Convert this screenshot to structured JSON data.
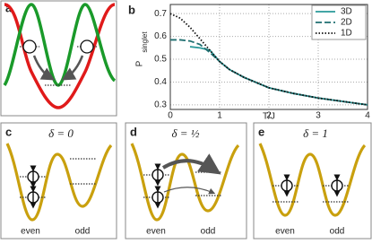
{
  "chart_data": {
    "type": "line",
    "panel_label": "b",
    "xlabel": "T/J",
    "ylabel": "P",
    "ylabel_sub": "singlet",
    "x": [
      0,
      0.2,
      0.4,
      0.6,
      0.8,
      1.0,
      1.2,
      1.5,
      2,
      2.5,
      3,
      3.5,
      4
    ],
    "series": [
      {
        "name": "3D",
        "color": "#2a9a9a",
        "dash": "solid",
        "values": [
          null,
          null,
          0.555,
          0.55,
          0.54,
          0.49,
          0.455,
          0.42,
          0.375,
          0.35,
          0.33,
          0.315,
          0.3
        ]
      },
      {
        "name": "2D",
        "color": "#1f6f70",
        "dash": "dashed",
        "values": [
          0.585,
          0.585,
          0.58,
          0.565,
          0.53,
          0.49,
          0.455,
          0.42,
          0.375,
          0.35,
          0.33,
          0.315,
          0.3
        ]
      },
      {
        "name": "1D",
        "color": "#111111",
        "dash": "dotted",
        "values": [
          0.7,
          0.68,
          0.64,
          0.59,
          0.54,
          0.49,
          0.455,
          0.42,
          0.375,
          0.35,
          0.33,
          0.315,
          0.3
        ]
      }
    ],
    "xlim": [
      0,
      4
    ],
    "xticks": [
      0,
      1,
      2,
      3,
      4
    ],
    "ylim": [
      0.28,
      0.74
    ],
    "yticks": [
      0.3,
      0.4,
      0.5,
      0.6,
      0.7
    ],
    "grid": true,
    "legend": "top-right"
  },
  "panels": {
    "a": {
      "label": "a"
    },
    "c": {
      "label": "c",
      "delta": "δ = 0",
      "left": "even",
      "right": "odd"
    },
    "d": {
      "label": "d",
      "delta": "δ = ½",
      "left": "even",
      "right": "odd"
    },
    "e": {
      "label": "e",
      "delta": "δ = 1",
      "left": "even",
      "right": "odd"
    }
  }
}
